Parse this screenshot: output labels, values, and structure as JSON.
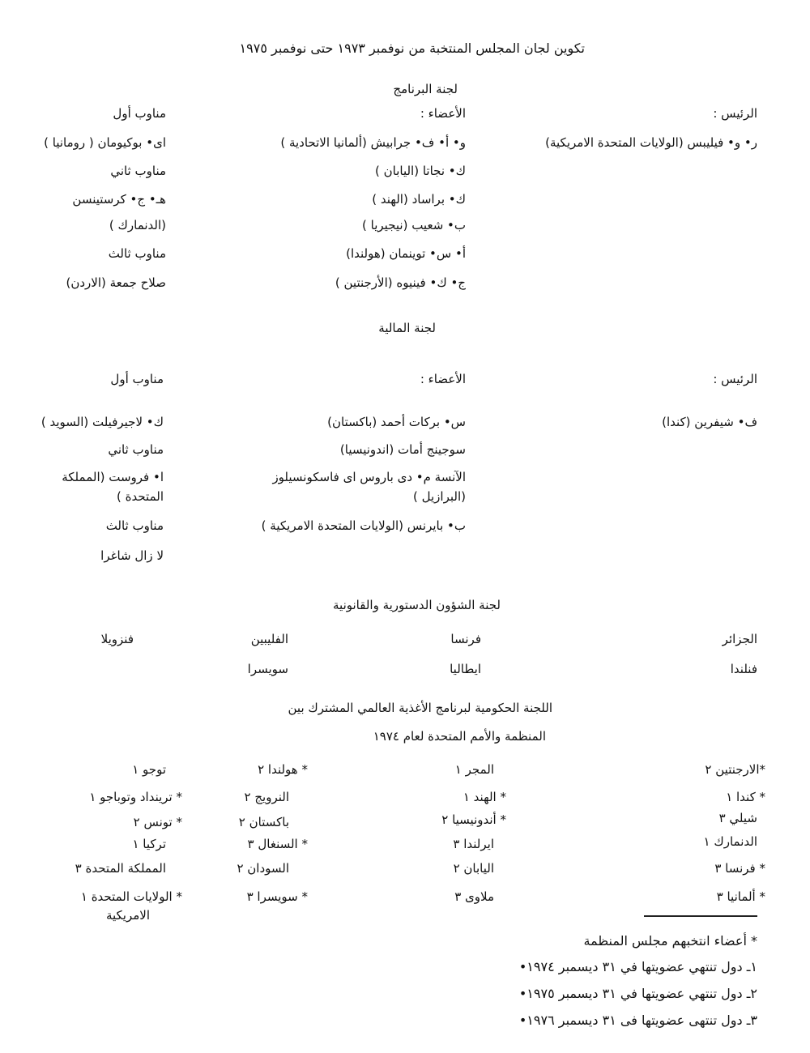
{
  "title": "تكوين لجان المجلس المنتخبة من نوفمبر ١٩٧٣ حتى نوفمبر ١٩٧٥",
  "program_committee": {
    "heading": "لجنة البرنامج",
    "chair_label": "الرئيس :",
    "chair": "ر• و• فيليبس (الولايات المتحدة الامريكية)",
    "members_label": "الأعضاء :",
    "members": [
      "و• أ• ف• جرابيش (ألمانيا الاتحادية )",
      "ك• نجاتا (اليابان )",
      "ك• براساد (الهند )",
      "ب• شعيب (نيجيريا )",
      "أ• س• توينمان (هولندا)",
      "ج• ك• فينيوه (الأرجنتين )"
    ],
    "alternates": [
      "مناوب أول",
      "اى• بوكيومان ( رومانيا )",
      "مناوب ثاني",
      "هـ• ج• كرستينسن",
      "(الدنمارك )",
      "مناوب ثالث",
      "صلاح جمعة (الاردن)"
    ]
  },
  "finance_committee": {
    "heading": "لجنة المالية",
    "chair_label": "الرئيس :",
    "chair": "ف• شيفرين (كندا)",
    "members_label": "الأعضاء :",
    "members": [
      "س• بركات أحمد (باكستان)",
      "سوجينج أمات (اندونيسيا)",
      "الآنسة م• دى باروس اى فاسكونسيلوز",
      "(البرازيل )",
      "ب• بايرنس (الولايات المتحدة الامريكية )"
    ],
    "alternates": [
      "مناوب أول",
      "ك• لاجيرفيلت (السويد )",
      "مناوب ثاني",
      "ا• فروست (المملكة",
      "المتحدة )",
      "مناوب ثالث",
      "لا زال شاغرا"
    ]
  },
  "constitutional_committee": {
    "heading": "لجنة الشؤون الدستورية والقانونية",
    "rows": [
      [
        "الجزائر",
        "فرنسا",
        "الفليبين",
        "فنزويلا"
      ],
      [
        "فنلندا",
        "ايطاليا",
        "سويسرا",
        ""
      ]
    ]
  },
  "wfp_committee": {
    "heading_line1": "اللجنة الحكومية لبرنامج الأغذية العالمي المشترك بين",
    "heading_line2": "المنظمة والأمم المتحدة لعام ١٩٧٤",
    "columns": [
      [
        "*الارجنتين ٢",
        "* كندا ١",
        "شيلي ٣",
        "الدنمارك ١",
        "* فرنسا ٣",
        "* ألمانيا ٣"
      ],
      [
        "المجر ١",
        "* الهند ١",
        "* أندونيسيا ٢",
        "ايرلندا ٣",
        "اليابان ٢",
        "ملاوى ٣"
      ],
      [
        "* هولندا ٢",
        "النرويج ٢",
        "باكستان ٢",
        "* السنغال ٣",
        "السودان ٢",
        "* سويسرا ٣"
      ],
      [
        "توجو ١",
        "* ترينداد وتوباجو ١",
        "* تونس ٢",
        "تركيا ١",
        "المملكة المتحدة ٣",
        "* الولايات المتحدة ١",
        "الامريكية"
      ]
    ]
  },
  "footnotes": [
    "* أعضاء انتخبهم مجلس المنظمة",
    "١ـ دول تنتهي عضويتها في ٣١ ديسمبر ١٩٧٤•",
    "٢ـ دول تنتهي عضويتها في ٣١ ديسمبر ١٩٧٥•",
    "٣ـ دول تنتهى عضويتها فى ٣١ ديسمبر ١٩٧٦•"
  ]
}
